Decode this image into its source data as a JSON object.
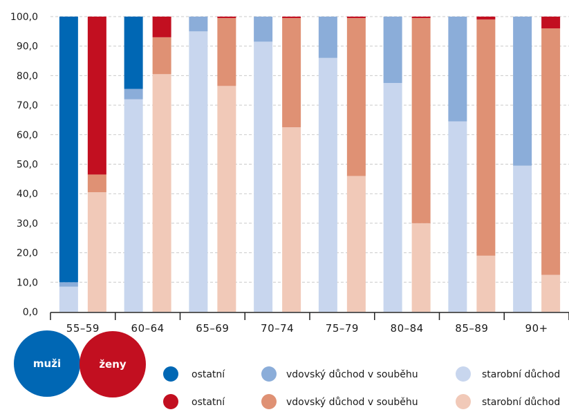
{
  "chart_data": {
    "type": "bar",
    "stacked": true,
    "percent_stacked": true,
    "categories": [
      "55–59",
      "60–64",
      "65–69",
      "70–74",
      "75–79",
      "80–84",
      "85–89",
      "90+"
    ],
    "ylim": [
      0,
      100
    ],
    "yticks": [
      "0,0",
      "10,0",
      "20,0",
      "30,0",
      "40,0",
      "50,0",
      "60,0",
      "70,0",
      "80,0",
      "90,0",
      "100,0"
    ],
    "grid": true,
    "groups": [
      {
        "label": "muži",
        "color": "#0067b4",
        "series": [
          {
            "name": "starobní důchod",
            "color": "#c8d6ee",
            "values": [
              8.5,
              72.0,
              95.0,
              91.5,
              86.0,
              77.5,
              64.5,
              49.5
            ]
          },
          {
            "name": "vdovský důchod v souběhu",
            "color": "#8badd9",
            "values": [
              1.5,
              3.5,
              5.0,
              8.5,
              14.0,
              22.5,
              35.5,
              50.5
            ]
          },
          {
            "name": "ostatní",
            "color": "#0067b4",
            "values": [
              90.0,
              24.5,
              0.0,
              0.0,
              0.0,
              0.0,
              0.0,
              0.0
            ]
          }
        ]
      },
      {
        "label": "ženy",
        "color": "#c20f20",
        "series": [
          {
            "name": "starobní důchod",
            "color": "#f1c9b8",
            "values": [
              40.5,
              80.5,
              76.5,
              62.5,
              46.0,
              30.0,
              19.0,
              12.5
            ]
          },
          {
            "name": "vdovský důchod v souběhu",
            "color": "#df9174",
            "values": [
              6.0,
              12.5,
              23.0,
              37.0,
              53.5,
              69.5,
              80.0,
              83.5
            ]
          },
          {
            "name": "ostatní",
            "color": "#c20f20",
            "values": [
              53.5,
              7.0,
              0.5,
              0.5,
              0.5,
              0.5,
              1.0,
              4.0
            ]
          }
        ]
      }
    ]
  },
  "legend": {
    "men_label": "muži",
    "women_label": "ženy",
    "men_items": [
      "ostatní",
      "vdovský důchod v souběhu",
      "starobní důchod"
    ],
    "women_items": [
      "ostatní",
      "vdovský důchod v souběhu",
      "starobní důchod"
    ],
    "men_colors": [
      "#0067b4",
      "#8badd9",
      "#c8d6ee"
    ],
    "women_colors": [
      "#c20f20",
      "#df9174",
      "#f1c9b8"
    ]
  }
}
